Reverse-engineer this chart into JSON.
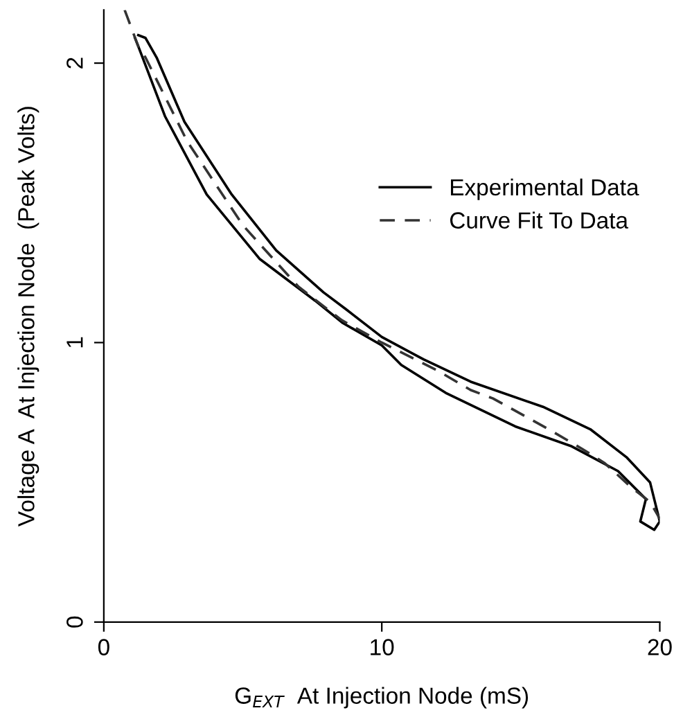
{
  "chart_data": {
    "type": "line",
    "xlabel": "G$_{EXT}$  At Injection Node (mS)",
    "ylabel": "Voltage A  At Injection Node  (Peak Volts)",
    "xlim": [
      0,
      20
    ],
    "ylim": [
      0,
      2.19
    ],
    "xticks": [
      0,
      10,
      20
    ],
    "yticks": [
      0,
      1,
      2
    ],
    "grid": false,
    "legend": "right",
    "series": [
      {
        "name": "Experimental Data",
        "color": "#000000",
        "line_style": "solid",
        "x": [
          1.24,
          1.5,
          1.9,
          2.9,
          4.6,
          6.2,
          7.9,
          8.7,
          10,
          11.5,
          13.2,
          15.8,
          17.5,
          18.8,
          19.65,
          19.8,
          20,
          19.8,
          19.3,
          19.5,
          18.5,
          16.8,
          14.8,
          12.3,
          10.7,
          10,
          8.6,
          7.6,
          5.6,
          3.7,
          2.2,
          1.24,
          1.12
        ],
        "values": [
          2.1,
          2.09,
          2.02,
          1.79,
          1.53,
          1.33,
          1.18,
          1.12,
          1.02,
          0.94,
          0.86,
          0.77,
          0.69,
          0.59,
          0.5,
          0.44,
          0.36,
          0.33,
          0.36,
          0.44,
          0.54,
          0.63,
          0.7,
          0.82,
          0.92,
          0.99,
          1.07,
          1.15,
          1.3,
          1.53,
          1.81,
          2.06,
          2.09
        ]
      },
      {
        "name": "Curve Fit To Data",
        "color": "#333333",
        "line_style": "dashed",
        "x": [
          0.75,
          1.24,
          1.5,
          3,
          5,
          7,
          8.56,
          10,
          12,
          13.2,
          14,
          16,
          17.2,
          18,
          19,
          19.65,
          20
        ],
        "values": [
          2.19,
          2.06,
          2.02,
          1.72,
          1.42,
          1.2,
          1.08,
          1.0,
          0.9,
          0.83,
          0.8,
          0.69,
          0.62,
          0.57,
          0.48,
          0.43,
          0.37
        ]
      }
    ]
  }
}
